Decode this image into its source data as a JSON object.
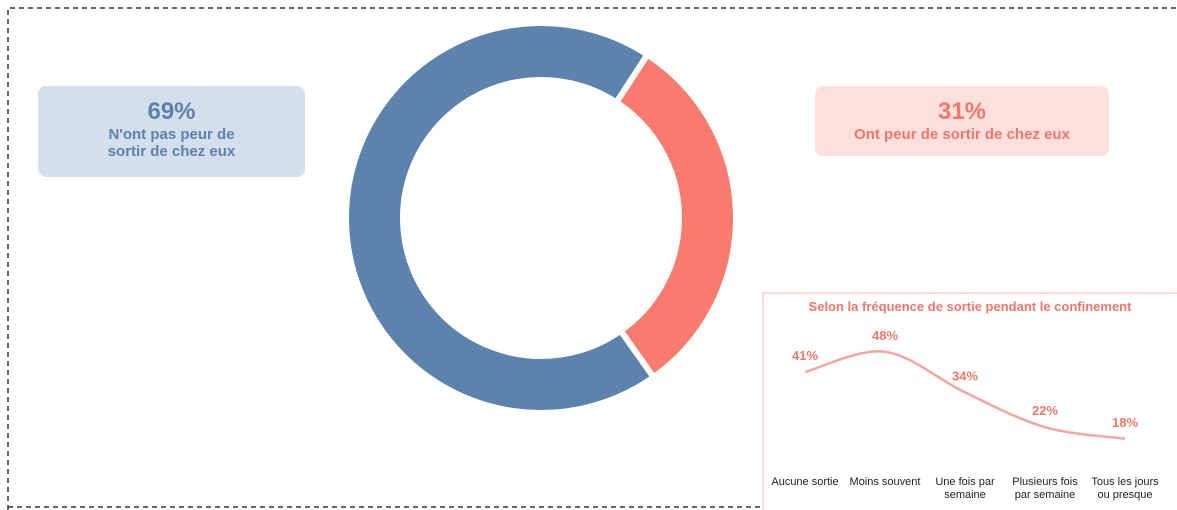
{
  "chart_data": [
    {
      "type": "donut",
      "categories": [
        "N'ont pas peur de sortir de chez eux",
        "Ont peur de sortir de chez eux"
      ],
      "values": [
        69,
        31
      ],
      "value_labels": [
        "69%",
        "31%"
      ],
      "colors": [
        "#5b83ad",
        "#f87b6e"
      ]
    },
    {
      "type": "line",
      "title": "Selon la fréquence de sortie pendant le confinement",
      "categories": [
        "Aucune sortie",
        "Moins souvent",
        "Une fois par semaine",
        "Plusieurs fois par semaine",
        "Tous les jours ou presque"
      ],
      "values": [
        41,
        48,
        34,
        22,
        18
      ],
      "value_labels": [
        "41%",
        "48%",
        "34%",
        "22%",
        "18%"
      ],
      "color": "#f4a59c",
      "label_color": "#f0776b"
    }
  ]
}
